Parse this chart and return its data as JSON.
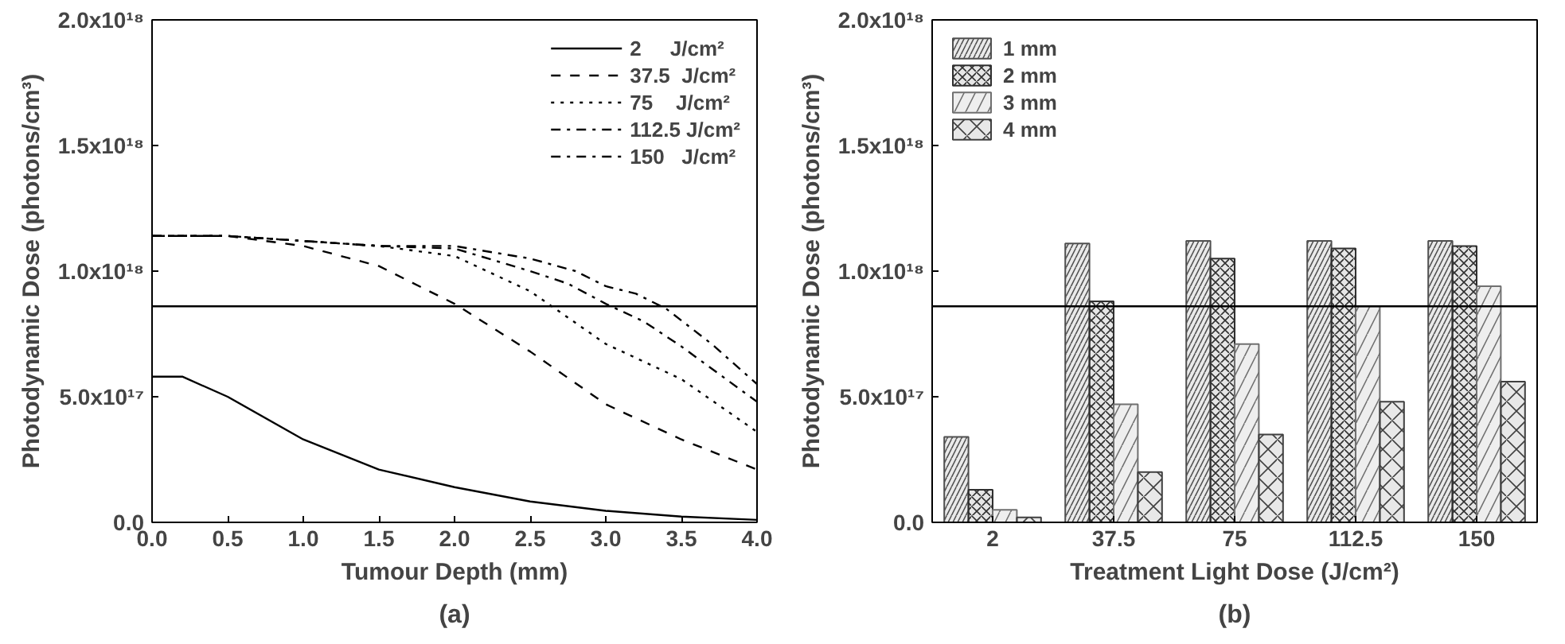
{
  "chart_data": [
    {
      "type": "line",
      "xlabel": "Tumour Depth (mm)",
      "ylabel": "Photodynamic Dose (photons/cm³)",
      "annotations": [
        "(a)"
      ],
      "xlim": [
        0,
        4
      ],
      "ylim": [
        0,
        2e+18
      ],
      "xticks": [
        {
          "value": 0,
          "label": "0.0"
        },
        0.5,
        {
          "value": 1,
          "label": "1.0"
        },
        1.5,
        {
          "value": 2,
          "label": "2.0"
        },
        2.5,
        {
          "value": 3,
          "label": "3.0"
        },
        3.5,
        {
          "value": 4,
          "label": "4.0"
        }
      ],
      "yticks": [
        {
          "value": 0,
          "label": "0.0"
        },
        {
          "value": 5e+17,
          "label": "5.0x10¹⁷"
        },
        {
          "value": 1e+18,
          "label": "1.0x10¹⁸"
        },
        {
          "value": 1.5e+18,
          "label": "1.5x10¹⁸"
        },
        {
          "value": 2e+18,
          "label": "2.0x10¹⁸"
        }
      ],
      "legend": "top right",
      "grid": false,
      "ref_lines": [
        {
          "axis": "y",
          "value": 8.6e+17,
          "color": "#000000"
        }
      ],
      "series": [
        {
          "name": "2     J/cm²",
          "color": "#000000",
          "line_style": "solid",
          "x": [
            0,
            0.2,
            0.5,
            1.0,
            1.5,
            2.0,
            2.5,
            3.0,
            3.5,
            4.0
          ],
          "values": [
            5.8e+17,
            5.8e+17,
            5e+17,
            3.3e+17,
            2.1e+17,
            1.4e+17,
            8.3e+16,
            4.6e+16,
            2.3e+16,
            1e+16
          ]
        },
        {
          "name": "37.5  J/cm²",
          "color": "#000000",
          "line_style": "dashed",
          "x": [
            0,
            0.5,
            1.0,
            1.5,
            2.0,
            2.5,
            3.0,
            3.5,
            4.0
          ],
          "values": [
            1.14e+18,
            1.14e+18,
            1.1e+18,
            1.02e+18,
            8.7e+17,
            6.8e+17,
            4.7e+17,
            3.3e+17,
            2.1e+17
          ]
        },
        {
          "name": "75    J/cm²",
          "color": "#000000",
          "line_style": "dotted",
          "x": [
            0,
            0.5,
            1.0,
            1.5,
            2.0,
            2.5,
            3.0,
            3.5,
            4.0
          ],
          "values": [
            1.14e+18,
            1.14e+18,
            1.12e+18,
            1.1e+18,
            1.06e+18,
            9.2e+17,
            7.1e+17,
            5.7e+17,
            3.6e+17
          ]
        },
        {
          "name": "112.5 J/cm²",
          "color": "#000000",
          "line_style": "dashdot",
          "x": [
            0,
            0.5,
            1.0,
            1.5,
            2.0,
            2.5,
            2.75,
            3.0,
            3.25,
            3.5,
            4.0
          ],
          "values": [
            1.14e+18,
            1.14e+18,
            1.12e+18,
            1.1e+18,
            1.09e+18,
            1e+18,
            9.5e+17,
            8.7e+17,
            8e+17,
            7e+17,
            4.8e+17
          ]
        },
        {
          "name": "150   J/cm²",
          "color": "#000000",
          "line_style": "dashdot",
          "x": [
            0,
            0.5,
            1.0,
            1.5,
            2.0,
            2.5,
            2.8,
            3.0,
            3.2,
            3.4,
            3.7,
            4.0
          ],
          "values": [
            1.14e+18,
            1.14e+18,
            1.12e+18,
            1.1e+18,
            1.1e+18,
            1.05e+18,
            1e+18,
            9.4e+17,
            9.1e+17,
            8.5e+17,
            7.1e+17,
            5.5e+17
          ]
        }
      ]
    },
    {
      "type": "bar",
      "xlabel": "Treatment Light Dose (J/cm²)",
      "ylabel": "Photodynamic Dose (photons/cm³)",
      "annotations": [
        "(b)"
      ],
      "categories": [
        "2",
        "37.5",
        "75",
        "112.5",
        "150"
      ],
      "ylim": [
        0,
        2e+18
      ],
      "yticks": [
        {
          "value": 0,
          "label": "0.0"
        },
        {
          "value": 5e+17,
          "label": "5.0x10¹⁷"
        },
        {
          "value": 1e+18,
          "label": "1.0x10¹⁸"
        },
        {
          "value": 1.5e+18,
          "label": "1.5x10¹⁸"
        },
        {
          "value": 2e+18,
          "label": "2.0x10¹⁸"
        }
      ],
      "legend": "top left",
      "grid": false,
      "ref_lines": [
        {
          "axis": "y",
          "value": 8.6e+17,
          "color": "#000000"
        }
      ],
      "series": [
        {
          "name": "1 mm",
          "color": "#505050",
          "values": [
            3.4e+17,
            1.11e+18,
            1.12e+18,
            1.12e+18,
            1.12e+18
          ]
        },
        {
          "name": "2 mm",
          "color": "#303030",
          "values": [
            1.3e+17,
            8.8e+17,
            1.05e+18,
            1.09e+18,
            1.1e+18
          ]
        },
        {
          "name": "3 mm",
          "color": "#707070",
          "values": [
            5e+16,
            4.7e+17,
            7.1e+17,
            8.6e+17,
            9.4e+17
          ]
        },
        {
          "name": "4 mm",
          "color": "#404040",
          "values": [
            2e+16,
            2e+17,
            3.5e+17,
            4.8e+17,
            5.6e+17
          ]
        }
      ]
    }
  ]
}
